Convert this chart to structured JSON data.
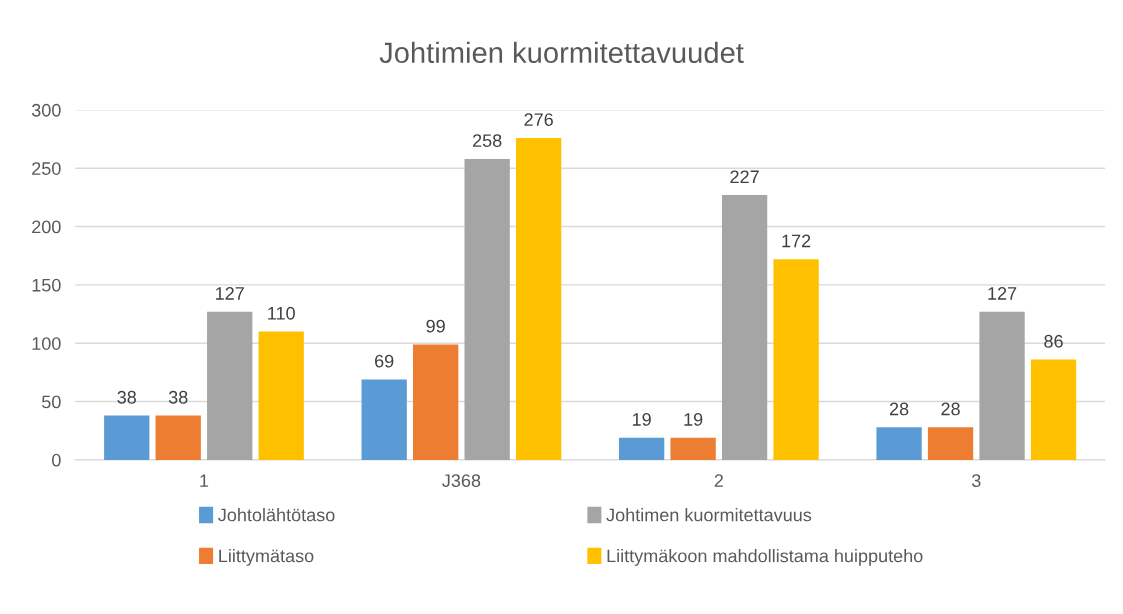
{
  "chart_data": {
    "type": "bar",
    "title": "Johtimien kuormitettavuudet",
    "categories": [
      "1",
      "J368",
      "2",
      "3"
    ],
    "series": [
      {
        "name": "Johtolähtötaso",
        "color": "#5b9bd5",
        "values": [
          38,
          69,
          19,
          28
        ]
      },
      {
        "name": "Liittymätaso",
        "color": "#ed7d31",
        "values": [
          38,
          99,
          19,
          28
        ]
      },
      {
        "name": "Johtimen kuormitettavuus",
        "color": "#a5a5a5",
        "values": [
          127,
          258,
          227,
          127
        ]
      },
      {
        "name": "Liittymäkoon mahdollistama huipputeho",
        "color": "#ffc000",
        "values": [
          110,
          276,
          172,
          86
        ]
      }
    ],
    "ylim": [
      0,
      300
    ],
    "yticks": [
      0,
      50,
      100,
      150,
      200,
      250,
      300
    ],
    "grid": "y",
    "legend": "bottom",
    "data_labels": true
  }
}
